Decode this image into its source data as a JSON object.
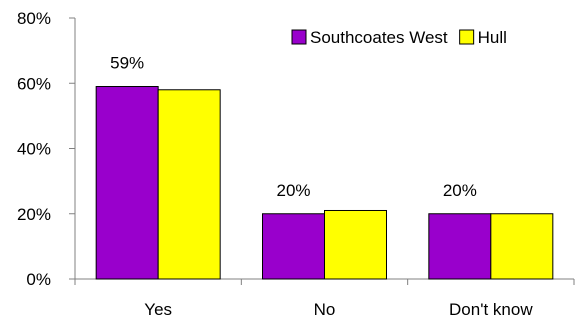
{
  "chart_data": {
    "type": "bar",
    "categories": [
      "Yes",
      "No",
      "Don't know"
    ],
    "series": [
      {
        "name": "Southcoates West",
        "values": [
          59,
          20,
          20
        ],
        "color": "#9900CC"
      },
      {
        "name": "Hull",
        "values": [
          58,
          21,
          20
        ],
        "color": "#FFFF00"
      }
    ],
    "data_labels": [
      "59%",
      "20%",
      "20%"
    ],
    "ylim": [
      0,
      80
    ],
    "yticks": [
      0,
      20,
      40,
      60,
      80
    ],
    "ytick_labels": [
      "0%",
      "20%",
      "40%",
      "60%",
      "80%"
    ],
    "grid": false,
    "legend_position": "top-right",
    "title": "",
    "xlabel": "",
    "ylabel": ""
  }
}
